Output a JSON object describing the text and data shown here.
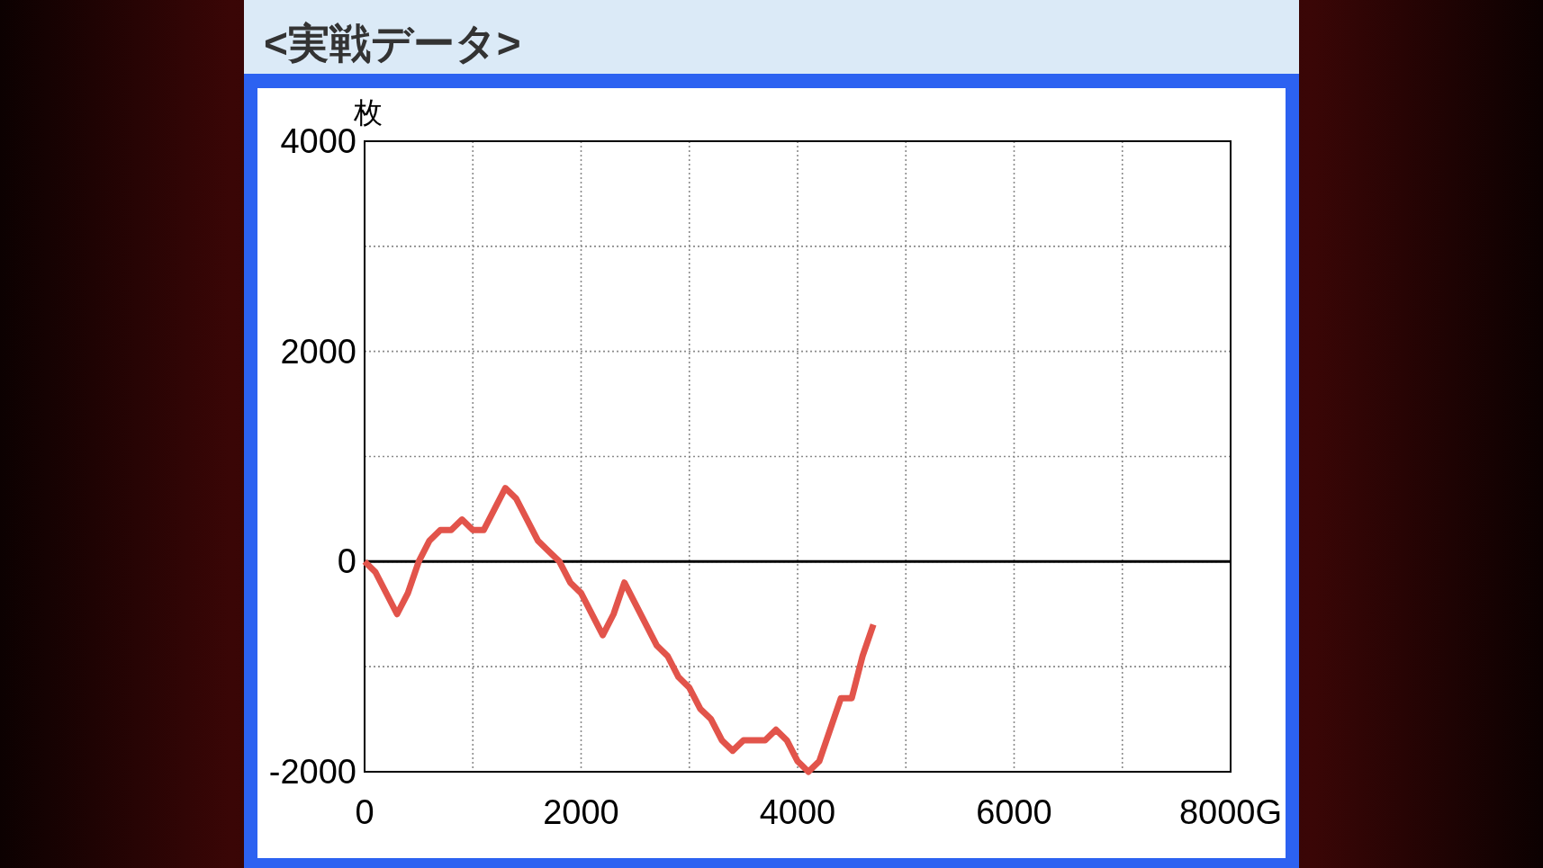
{
  "chart_data": {
    "type": "line",
    "title": "<実戦データ>",
    "ylabel": "枚",
    "x": [
      0,
      100,
      300,
      400,
      500,
      600,
      700,
      800,
      900,
      1000,
      1100,
      1300,
      1400,
      1600,
      1700,
      1800,
      1900,
      2000,
      2200,
      2300,
      2400,
      2700,
      2800,
      2900,
      3000,
      3100,
      3200,
      3300,
      3400,
      3500,
      3700,
      3800,
      3900,
      4000,
      4100,
      4200,
      4400,
      4500,
      4600,
      4700
    ],
    "series": [
      {
        "color": "#e2544b",
        "values": [
          0,
          -100,
          -500,
          -300,
          0,
          200,
          300,
          300,
          400,
          300,
          300,
          700,
          600,
          200,
          100,
          0,
          -200,
          -300,
          -700,
          -500,
          -200,
          -800,
          -900,
          -1100,
          -1200,
          -1400,
          -1500,
          -1700,
          -1800,
          -1700,
          -1700,
          -1600,
          -1700,
          -1900,
          -2000,
          -1900,
          -1300,
          -1300,
          -900,
          -600
        ]
      }
    ],
    "xlim": [
      0,
      8000
    ],
    "ylim": [
      -2000,
      4000
    ],
    "xticks": [
      0,
      {
        "value": 1000,
        "label": null
      },
      2000,
      {
        "value": 3000,
        "label": null
      },
      4000,
      {
        "value": 5000,
        "label": null
      },
      6000,
      {
        "value": 7000,
        "label": null
      },
      {
        "value": 8000,
        "label": "8000G"
      }
    ],
    "yticks": [
      -2000,
      {
        "value": -1000,
        "label": null
      },
      0,
      {
        "value": 1000,
        "label": null
      },
      2000,
      {
        "value": 3000,
        "label": null
      },
      4000
    ],
    "grid": true,
    "line_style": "solid",
    "ref_lines": [
      {
        "axis": "y",
        "value": 0,
        "color": "#000000",
        "line_style": "solid"
      }
    ]
  }
}
